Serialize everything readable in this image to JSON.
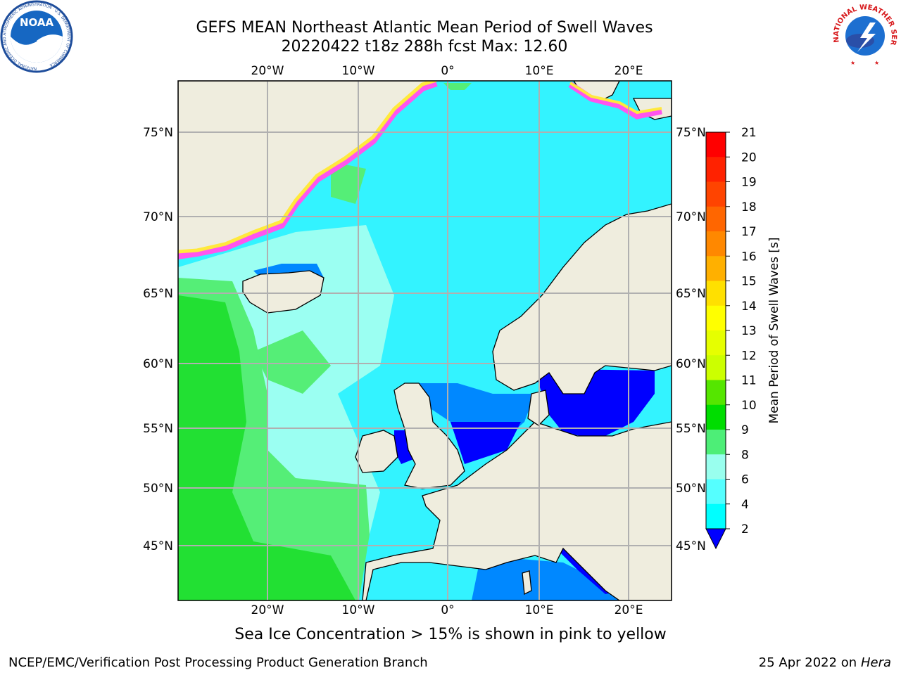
{
  "header": {
    "title_line1": "GEFS MEAN Northeast Atlantic Mean Period of Swell Waves",
    "title_line2": "20220422 t18z 288h fcst   Max: 12.60"
  },
  "logos": {
    "left": "NOAA",
    "left_ring_text": "NATIONAL OCEANIC AND ATMOSPHERIC ADMINISTRATION · U.S. DEPARTMENT OF COMMERCE",
    "right_ring_text": "NATIONAL WEATHER SERVICE"
  },
  "map": {
    "lon_labels": [
      "20°W",
      "10°W",
      "0°",
      "10°E",
      "20°E"
    ],
    "lat_labels": [
      "75°N",
      "70°N",
      "65°N",
      "60°N",
      "55°N",
      "50°N",
      "45°N"
    ]
  },
  "colorbar": {
    "label": "Mean Period of Swell Waves [s]",
    "ticks": [
      "21",
      "20",
      "19",
      "18",
      "17",
      "16",
      "15",
      "14",
      "13",
      "12",
      "11",
      "10",
      "9",
      "8",
      "6",
      "4",
      "2"
    ],
    "colors": [
      "#ff0000",
      "#ff2200",
      "#ff4400",
      "#ff6600",
      "#ff8800",
      "#ffb000",
      "#ffe000",
      "#ffff00",
      "#e6ff00",
      "#ccff00",
      "#55e600",
      "#00dd00",
      "#4dee77",
      "#99ffee",
      "#55ffff",
      "#00ffff",
      "#0088ff",
      "#0000ff"
    ],
    "under_color": "#0000ff"
  },
  "colors": {
    "land": "#efedde",
    "grid": "#b0b0b0",
    "swell_main": "#33f3ff",
    "swell_pale": "#9bfff2",
    "swell_green": "#22e033",
    "swell_lightgreen": "#55ee77",
    "swell_blue": "#0088ff",
    "swell_darkblue": "#0000ff",
    "ice_pink": "#ff55ee",
    "ice_yellow": "#ffe93c"
  },
  "footer": {
    "ice_note": "Sea Ice Concentration > 15% is shown in pink to yellow",
    "left": "NCEP/EMC/Verification Post Processing Product Generation Branch",
    "date": "25 Apr 2022 on",
    "machine": "Hera"
  }
}
